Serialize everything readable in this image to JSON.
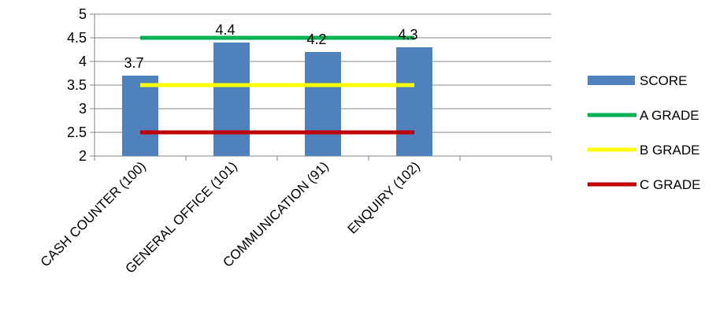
{
  "chart_data": {
    "type": "bar",
    "title": "",
    "xlabel": "",
    "ylabel": "",
    "ylim": [
      2,
      5
    ],
    "yticks": [
      "5",
      "4.5",
      "4",
      "3.5",
      "3",
      "2.5",
      "2"
    ],
    "categories": [
      "CASH COUNTER (100)",
      "GENERAL OFFICE (101)",
      "COMMUNICATION (91)",
      "ENQUIRY (102)",
      ""
    ],
    "series": [
      {
        "name": "SCORE",
        "kind": "bar",
        "color": "#4f81bd",
        "values": [
          3.7,
          4.4,
          4.2,
          4.3,
          null
        ],
        "labels": [
          "3.7",
          "4.4",
          "4.2",
          "4.3",
          ""
        ]
      },
      {
        "name": "A GRADE",
        "kind": "line",
        "color": "#00b050",
        "values": [
          4.5,
          4.5,
          4.5,
          4.5,
          null
        ]
      },
      {
        "name": "B GRADE",
        "kind": "line",
        "color": "#ffff00",
        "values": [
          3.5,
          3.5,
          3.5,
          3.5,
          null
        ]
      },
      {
        "name": "C GRADE",
        "kind": "line",
        "color": "#c00000",
        "values": [
          2.5,
          2.5,
          2.5,
          2.5,
          null
        ]
      }
    ],
    "grid": true,
    "legend_position": "right"
  }
}
